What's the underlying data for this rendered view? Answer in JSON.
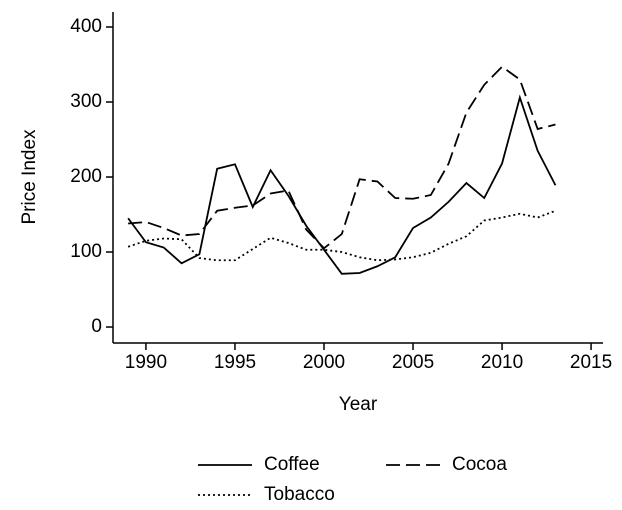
{
  "chart_data": {
    "type": "line",
    "x_label": "Year",
    "y_label": "Price Index",
    "x": [
      1989,
      1990,
      1991,
      1992,
      1993,
      1994,
      1995,
      1996,
      1997,
      1998,
      1999,
      2000,
      2001,
      2002,
      2003,
      2004,
      2005,
      2006,
      2007,
      2008,
      2009,
      2010,
      2011,
      2012,
      2013
    ],
    "series": [
      {
        "name": "Coffee",
        "color": "#000000",
        "dash": "none",
        "values": [
          145,
          113,
          106,
          85,
          97,
          211,
          217,
          160,
          209,
          175,
          135,
          103,
          71,
          72,
          81,
          93,
          132,
          146,
          167,
          192,
          172,
          218,
          306,
          235,
          189
        ]
      },
      {
        "name": "Cocoa",
        "color": "#000000",
        "dash": "14,6",
        "values": [
          138,
          140,
          132,
          122,
          124,
          155,
          159,
          162,
          178,
          182,
          130,
          105,
          124,
          197,
          194,
          172,
          171,
          176,
          218,
          286,
          323,
          347,
          330,
          264,
          270
        ]
      },
      {
        "name": "Tobacco",
        "color": "#000000",
        "dash": "2,3",
        "values": [
          107,
          115,
          118,
          117,
          92,
          89,
          89,
          104,
          119,
          112,
          103,
          103,
          100,
          93,
          89,
          90,
          93,
          99,
          111,
          121,
          142,
          146,
          151,
          146,
          155
        ]
      }
    ],
    "xlim": [
      1988.15,
      2015.67
    ],
    "xticks": [
      1990,
      1995,
      2000,
      2005,
      2010,
      2015
    ],
    "ylim": [
      -21.3,
      420
    ],
    "yticks": [
      0,
      100,
      200,
      300,
      400
    ]
  }
}
